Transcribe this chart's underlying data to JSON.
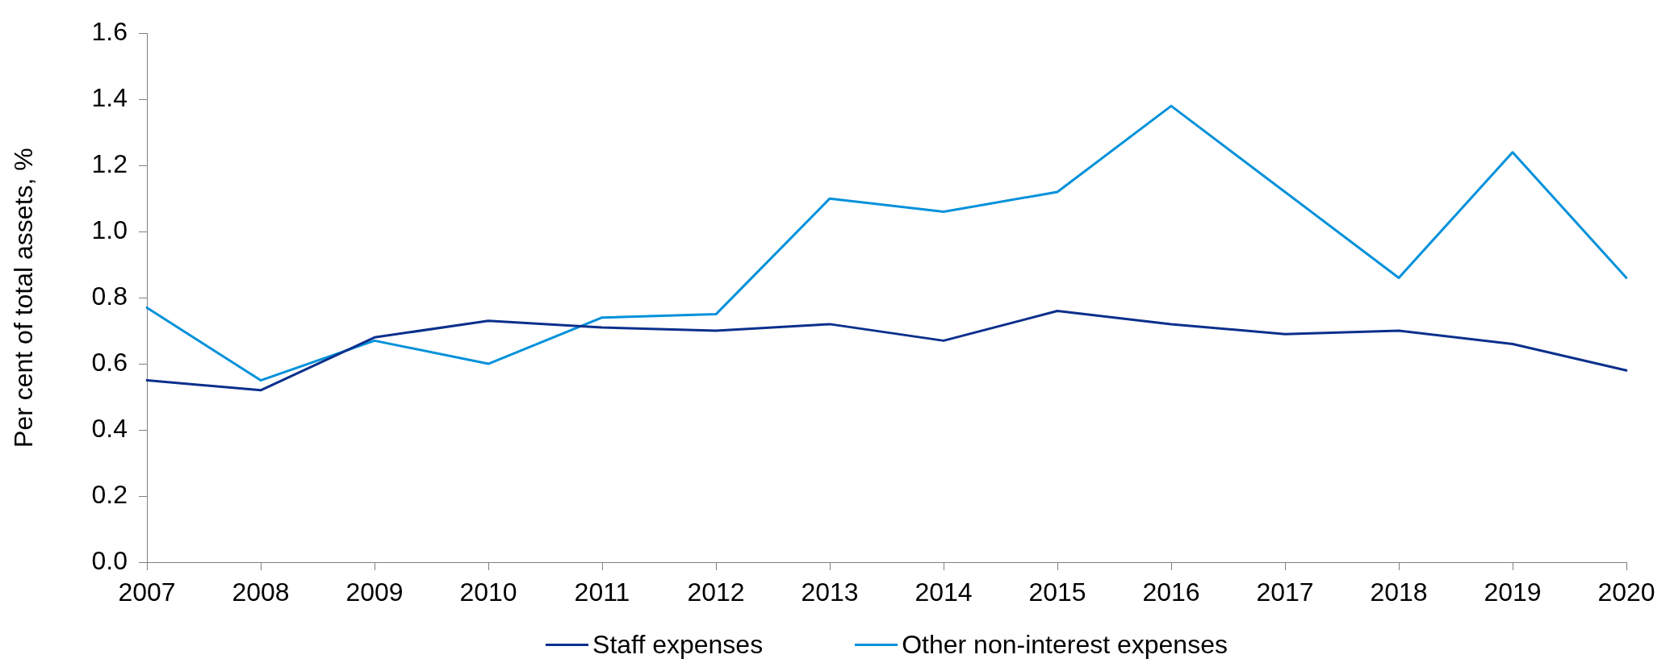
{
  "chart_data": {
    "type": "line",
    "categories": [
      "2007",
      "2008",
      "2009",
      "2010",
      "2011",
      "2012",
      "2013",
      "2014",
      "2015",
      "2016",
      "2017",
      "2018",
      "2019",
      "2020"
    ],
    "series": [
      {
        "name": "Staff expenses",
        "color": "#0a2f8c",
        "values": [
          0.55,
          0.52,
          0.68,
          0.73,
          0.71,
          0.7,
          0.72,
          0.67,
          0.76,
          0.72,
          0.69,
          0.7,
          0.66,
          0.58
        ]
      },
      {
        "name": "Other non-interest expenses",
        "color": "#0091da",
        "values": [
          0.77,
          0.55,
          0.67,
          0.6,
          0.74,
          0.75,
          1.1,
          1.06,
          1.12,
          1.38,
          1.12,
          0.86,
          1.24,
          0.86
        ]
      }
    ],
    "ylabel": "Per cent of total assets, %",
    "ylim": [
      0,
      1.6
    ],
    "yticks": [
      {
        "value": 0,
        "label": "0.0"
      },
      0.2,
      0.4,
      0.6,
      0.8,
      {
        "value": 1,
        "label": "1.0"
      },
      1.2,
      1.4,
      1.6
    ],
    "grid": false,
    "legend": "bottom",
    "marker": "none",
    "line_style": "solid"
  }
}
